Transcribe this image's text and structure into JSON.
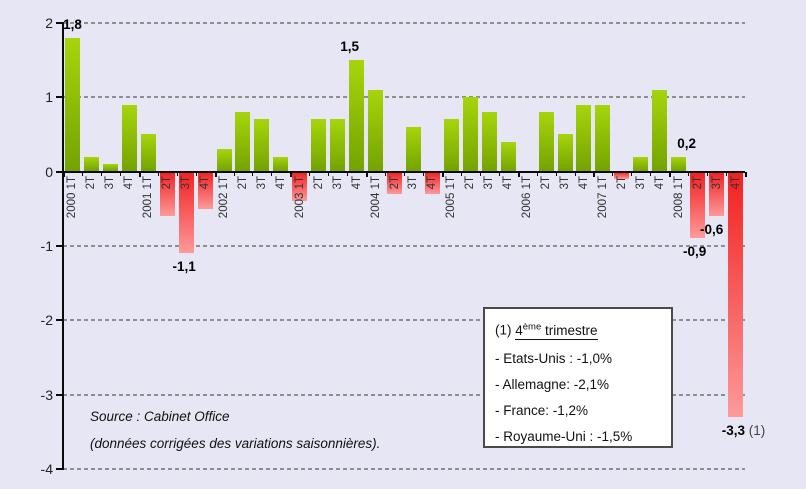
{
  "page": {
    "background": "#e6e6f5"
  },
  "chart_data": {
    "type": "bar",
    "title": "",
    "categories": [
      "2000 1T",
      "2T",
      "3T",
      "4T",
      "2001 1T",
      "2T",
      "3T",
      "4T",
      "2002 1T",
      "2T",
      "3T",
      "4T",
      "2003 1T",
      "2T",
      "3T",
      "4T",
      "2004 1T",
      "2T",
      "3T",
      "4T",
      "2005 1T",
      "2T",
      "3T",
      "4T",
      "2006 1T",
      "2T",
      "3T",
      "4T",
      "2007 1T",
      "2T",
      "3T",
      "4T",
      "2008 1T",
      "2T",
      "3T",
      "4T"
    ],
    "values": [
      1.8,
      0.2,
      0.1,
      0.9,
      0.5,
      -0.6,
      -1.1,
      -0.5,
      0.3,
      0.8,
      0.7,
      0.2,
      -0.4,
      0.7,
      0.7,
      1.5,
      1.1,
      -0.3,
      0.6,
      -0.3,
      0.7,
      1.0,
      0.8,
      0.4,
      0.0,
      0.8,
      0.5,
      0.9,
      0.9,
      -0.1,
      0.2,
      1.1,
      0.2,
      -0.9,
      -0.6,
      -3.3
    ],
    "xlabel": "",
    "ylabel": "",
    "ylim": [
      -4,
      2
    ],
    "yticks": [
      2,
      1,
      0,
      -1,
      -2,
      -3,
      -4
    ],
    "gridlines": [
      2,
      1,
      -1,
      -2,
      -3,
      -4
    ],
    "grid": "dashed-horizontal",
    "legend_position": "none",
    "colors": {
      "positive_top": "#a6d50d",
      "positive_bottom": "#74a300",
      "negative_top": "#f22020",
      "negative_bottom": "#fd9a9a",
      "background": "#e6e6f5",
      "grid": "#8f8f8f",
      "axis": "#0a0a0a",
      "tick_label": "#333333"
    },
    "annotations": [
      {
        "index": 0,
        "text": "1,8",
        "placement": "above",
        "dx": 0
      },
      {
        "index": 6,
        "text": "-1,1",
        "placement": "below",
        "dx": -2
      },
      {
        "index": 15,
        "text": "1,5",
        "placement": "above",
        "dx": -7
      },
      {
        "index": 32,
        "text": "0,2",
        "placement": "above",
        "dx": 8
      },
      {
        "index": 33,
        "text": "-0,9",
        "placement": "below",
        "dx": -3
      },
      {
        "index": 34,
        "text": "-0,6",
        "placement": "below",
        "dx": -5
      },
      {
        "index": 35,
        "text": "-3,3",
        "suffix": " (1)",
        "placement": "below",
        "dx": 8
      }
    ]
  },
  "note_box": {
    "title": {
      "prefix": "(1) ",
      "base": "4",
      "sup": "ème",
      "rest": " trimestre"
    },
    "items": [
      "- Etats-Unis : -1,0%",
      "- Allemagne: -2,1%",
      "- France: -1,2%",
      "- Royaume-Uni : -1,5%"
    ]
  },
  "source": {
    "line1": "Source : Cabinet Office",
    "line2": "(données corrigées des variations saisonnières)."
  }
}
